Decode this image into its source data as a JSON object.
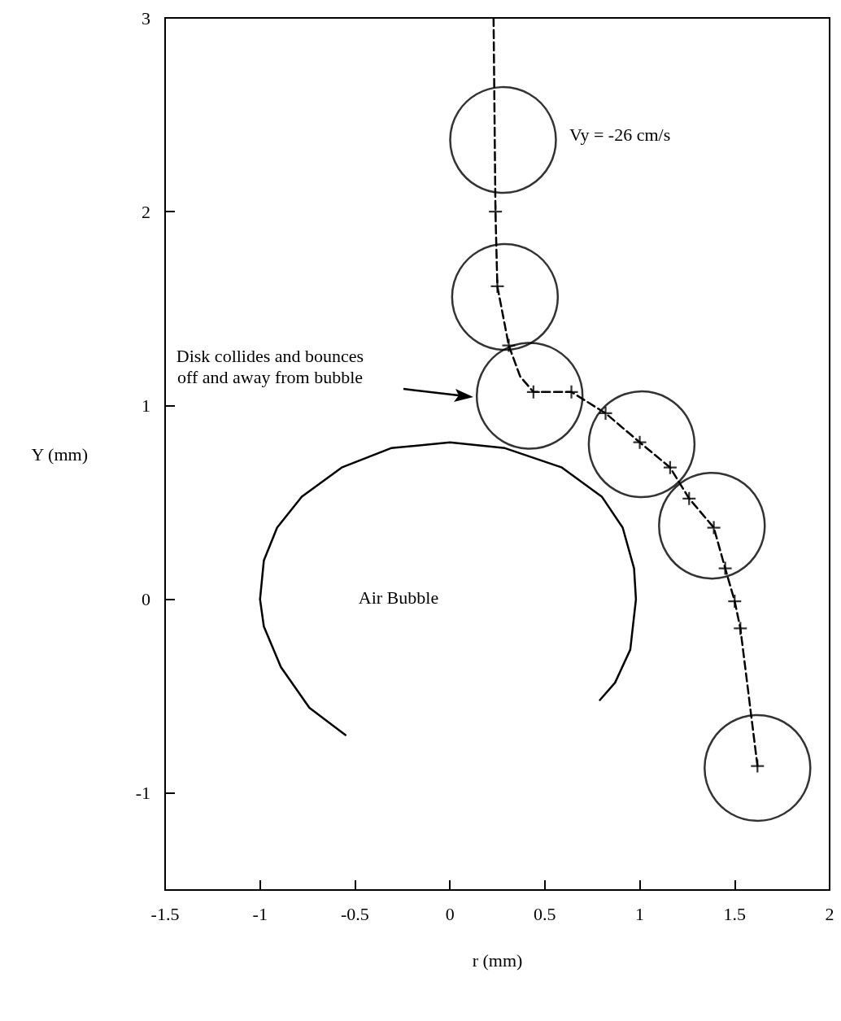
{
  "chart_data": {
    "type": "line",
    "xlabel": "r (mm)",
    "ylabel": "Y (mm)",
    "xlim": [
      -1.5,
      2
    ],
    "xticks": [
      -1.5,
      -1,
      -0.5,
      0,
      0.5,
      1,
      1.5,
      2
    ],
    "ylim": [
      -1.5,
      3
    ],
    "yticks": [
      -1,
      0,
      1,
      2,
      3
    ],
    "grid": false,
    "annotations": [
      "Vy = -26 cm/s",
      "Disk collides and bounces off and away from bubble",
      "Air Bubble"
    ],
    "series": [
      {
        "color": "#000000",
        "line_style": "solid",
        "marker": "none",
        "x": [
          -0.55,
          -0.74,
          -0.89,
          -0.98,
          -1.0,
          -0.98,
          -0.91,
          -0.78,
          -0.57,
          -0.31,
          0.0,
          0.29,
          0.59,
          0.8,
          0.91,
          0.97,
          0.98,
          0.95,
          0.87,
          0.79
        ],
        "values": [
          -0.7,
          -0.56,
          -0.35,
          -0.14,
          0.0,
          0.2,
          0.37,
          0.53,
          0.68,
          0.78,
          0.81,
          0.78,
          0.68,
          0.53,
          0.37,
          0.16,
          0.0,
          -0.26,
          -0.43,
          -0.52
        ]
      },
      {
        "color": "#000000",
        "line_style": "dashed",
        "marker": "none",
        "x": [
          0.23,
          0.24,
          0.25,
          0.31,
          0.37,
          0.44,
          0.64,
          0.82,
          1.0,
          1.16,
          1.26,
          1.39,
          1.45,
          1.5,
          1.53,
          1.62
        ],
        "values": [
          3.0,
          2.0,
          1.615,
          1.31,
          1.15,
          1.07,
          1.07,
          0.96,
          0.81,
          0.68,
          0.52,
          0.37,
          0.16,
          -0.01,
          -0.15,
          -0.86
        ]
      },
      {
        "type": "scatter",
        "color": "#000000",
        "marker": "cross",
        "x": [
          0.24,
          0.25,
          0.31,
          0.44,
          0.64,
          0.82,
          1.0,
          1.16,
          1.26,
          1.39,
          1.45,
          1.5,
          1.53,
          1.62
        ],
        "values": [
          2.0,
          1.615,
          1.31,
          1.07,
          1.07,
          0.96,
          0.81,
          0.68,
          0.52,
          0.37,
          0.16,
          -0.01,
          -0.15,
          -0.86
        ]
      },
      {
        "type": "bubble",
        "color": "#000000",
        "marker": "circle",
        "x": [
          0.28,
          0.29,
          0.42,
          1.01,
          1.38,
          1.62
        ],
        "values": [
          2.37,
          1.56,
          1.05,
          0.8,
          0.38,
          -0.87
        ],
        "sizes": [
          1,
          1,
          1,
          1,
          1,
          1
        ]
      }
    ]
  }
}
